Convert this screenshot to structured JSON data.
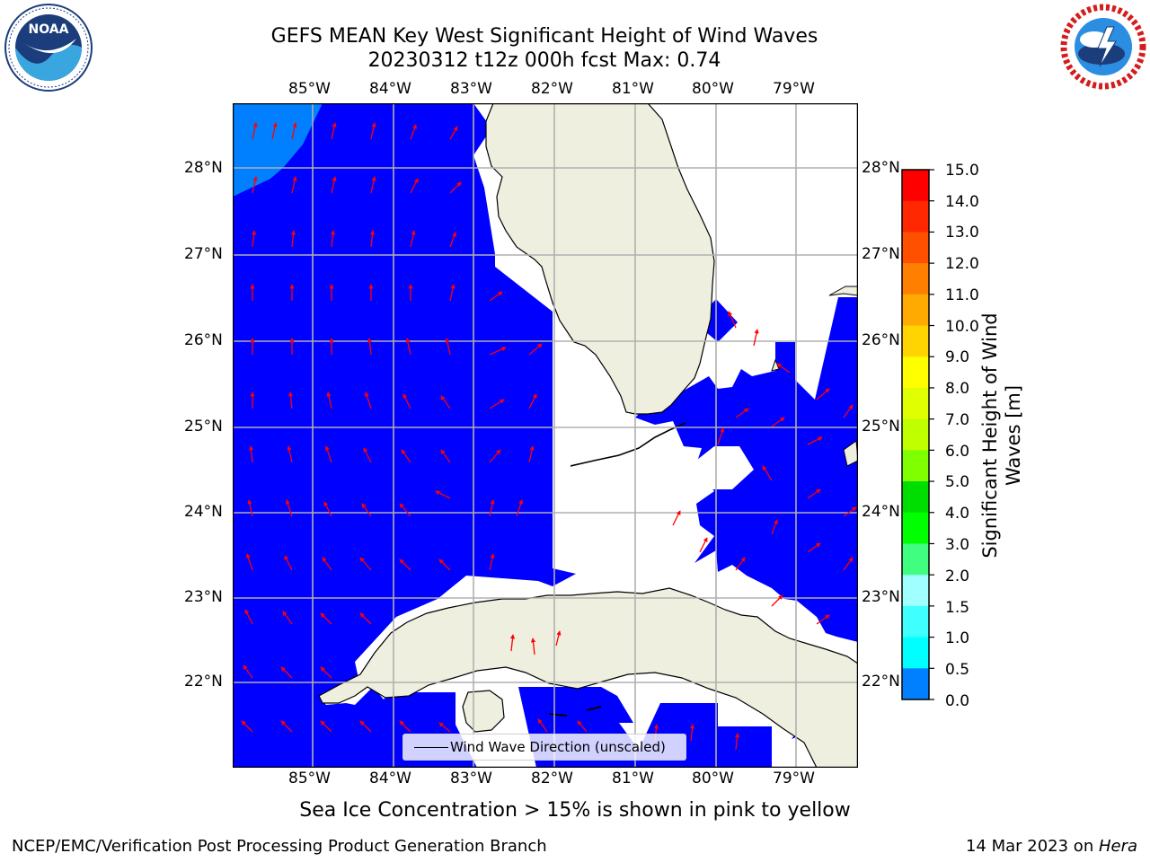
{
  "title": {
    "line1": "GEFS MEAN Key West Significant Height of Wind Waves",
    "line2": "20230312 t12z 000h fcst   Max: 0.74"
  },
  "logos": {
    "noaa": {
      "label": "NOAA",
      "ring_text": "NATIONAL OCEANIC AND ATMOSPHERIC ADMINISTRATION · U.S. DEPARTMENT OF COMMERCE"
    },
    "nws": {
      "ring_text": "NATIONAL WEATHER SERVICE"
    }
  },
  "map": {
    "lon_labels": [
      "85°W",
      "84°W",
      "83°W",
      "82°W",
      "81°W",
      "80°W",
      "79°W"
    ],
    "lat_labels": [
      "28°N",
      "27°N",
      "26°N",
      "25°N",
      "24°N",
      "23°N",
      "22°N"
    ],
    "colors": {
      "ocean_low": "#0000ff",
      "ocean_mid": "#0080ff",
      "land": "#efefdf",
      "arrow": "#ff0000",
      "grid": "#b0b0b0"
    }
  },
  "legend": {
    "label": "Wind Wave Direction (unscaled)"
  },
  "colorbar": {
    "label": "Significant Height of Wind Waves [m]",
    "label_line1": "Significant Height of Wind",
    "label_line2": "Waves [m]",
    "ticks": [
      "15.0",
      "14.0",
      "13.0",
      "12.0",
      "11.0",
      "10.0",
      "9.0",
      "8.0",
      "7.0",
      "6.0",
      "5.0",
      "4.0",
      "3.0",
      "2.0",
      "1.5",
      "1.0",
      "0.5",
      "0.0"
    ],
    "colors_top_to_bottom": [
      "#ff0000",
      "#ff2800",
      "#ff5000",
      "#ff8000",
      "#ffaa00",
      "#ffd400",
      "#ffff00",
      "#e0ff00",
      "#c0ff00",
      "#80ff00",
      "#00dd00",
      "#00ff00",
      "#40ff80",
      "#a0ffff",
      "#40ffff",
      "#00ffff",
      "#0080ff",
      "#0000ff"
    ]
  },
  "caption": "Sea Ice Concentration > 15% is shown in pink to yellow",
  "footer": {
    "left": "NCEP/EMC/Verification Post Processing Product Generation Branch",
    "right_date": "14 Mar 2023 on ",
    "right_host": "Hera"
  }
}
